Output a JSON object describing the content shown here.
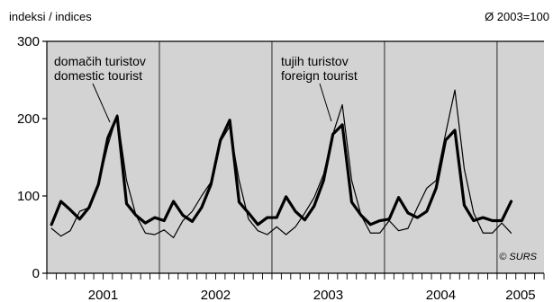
{
  "chart_data": {
    "type": "line",
    "unit_label": "indeksi / indices",
    "base_label": "Ø 2003=100",
    "credit": "© SURS",
    "y_ticks": [
      0,
      100,
      200,
      300
    ],
    "ylim": [
      0,
      300
    ],
    "years": [
      "2001",
      "2002",
      "2003",
      "2004",
      "2005"
    ],
    "months_total": 53,
    "grid": false,
    "series": [
      {
        "label_lines": [
          "domačih turistov",
          "domestic tourist"
        ],
        "color": "#000000",
        "values": [
          63,
          93,
          82,
          70,
          85,
          115,
          175,
          203,
          90,
          75,
          65,
          72,
          68,
          93,
          75,
          67,
          85,
          115,
          172,
          198,
          92,
          78,
          63,
          72,
          72,
          99,
          80,
          69,
          87,
          120,
          180,
          192,
          92,
          75,
          63,
          68,
          70,
          98,
          78,
          72,
          80,
          110,
          172,
          185,
          88,
          68,
          72,
          68,
          68,
          93
        ]
      },
      {
        "label_lines": [
          "tujih turistov",
          "foreign tourist"
        ],
        "color": "#000000",
        "values": [
          58,
          48,
          55,
          80,
          85,
          115,
          165,
          205,
          120,
          75,
          52,
          50,
          56,
          46,
          68,
          80,
          100,
          118,
          170,
          190,
          120,
          70,
          55,
          50,
          60,
          50,
          60,
          78,
          98,
          128,
          180,
          218,
          120,
          75,
          52,
          52,
          68,
          55,
          58,
          85,
          110,
          120,
          180,
          237,
          135,
          78,
          52,
          52,
          65,
          52
        ]
      }
    ]
  }
}
